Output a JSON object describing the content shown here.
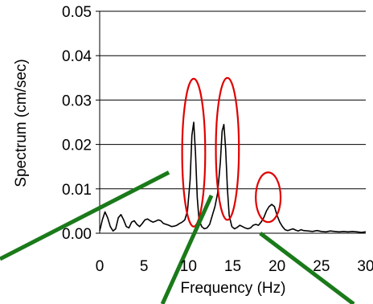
{
  "chart_data": {
    "type": "line",
    "xlabel": "Frequency (Hz)",
    "ylabel": "Spectrum (cm/sec)",
    "xlim": [
      0,
      30
    ],
    "ylim": [
      0,
      0.05
    ],
    "x_ticks": [
      "0",
      "5",
      "10",
      "15",
      "20",
      "25",
      "30"
    ],
    "y_ticks": [
      "0.00",
      "0.01",
      "0.02",
      "0.03",
      "0.04",
      "0.05"
    ],
    "grid": "horizontal",
    "series": [
      {
        "x": [
          0,
          0.3,
          0.6,
          0.9,
          1.2,
          1.5,
          1.8,
          2.1,
          2.4,
          2.7,
          3.0,
          3.3,
          3.6,
          3.9,
          4.2,
          4.5,
          4.8,
          5.1,
          5.4,
          5.7,
          6.0,
          6.3,
          6.6,
          6.9,
          7.2,
          7.5,
          7.8,
          8.1,
          8.4,
          8.7,
          9.0,
          9.3,
          9.6,
          9.9,
          10.2,
          10.4,
          10.6,
          10.8,
          11.0,
          11.2,
          11.5,
          11.8,
          12.1,
          12.4,
          12.7,
          13.0,
          13.3,
          13.6,
          13.8,
          14.0,
          14.2,
          14.4,
          14.6,
          14.9,
          15.2,
          15.5,
          15.8,
          16.1,
          16.4,
          16.7,
          17.0,
          17.3,
          17.6,
          17.9,
          18.2,
          18.5,
          18.8,
          19.1,
          19.4,
          19.7,
          20.0,
          20.3,
          20.6,
          20.9,
          21.2,
          21.5,
          21.8,
          22.1,
          22.4,
          22.7,
          23.0,
          23.5,
          24.0,
          24.5,
          25.0,
          25.5,
          26.0,
          26.5,
          27.0,
          27.5,
          28.0,
          28.5,
          29.0,
          29.5,
          30.0
        ],
        "y": [
          0.0005,
          0.003,
          0.0048,
          0.0035,
          0.0015,
          0.0005,
          0.001,
          0.0035,
          0.0042,
          0.003,
          0.0015,
          0.0012,
          0.0025,
          0.0028,
          0.002,
          0.0015,
          0.0022,
          0.003,
          0.0032,
          0.0028,
          0.0025,
          0.0027,
          0.003,
          0.0028,
          0.0022,
          0.002,
          0.0018,
          0.0015,
          0.0016,
          0.0018,
          0.0022,
          0.0025,
          0.003,
          0.005,
          0.012,
          0.022,
          0.025,
          0.018,
          0.008,
          0.003,
          0.0015,
          0.001,
          0.0012,
          0.002,
          0.004,
          0.006,
          0.009,
          0.016,
          0.023,
          0.0245,
          0.019,
          0.01,
          0.004,
          0.0015,
          0.001,
          0.0013,
          0.0018,
          0.0015,
          0.0012,
          0.001,
          0.0012,
          0.0018,
          0.002,
          0.0018,
          0.0025,
          0.0035,
          0.005,
          0.006,
          0.0065,
          0.006,
          0.004,
          0.0025,
          0.0015,
          0.0008,
          0.0006,
          0.0008,
          0.001,
          0.0007,
          0.0005,
          0.0008,
          0.0006,
          0.0005,
          0.0004,
          0.0006,
          0.0004,
          0.0003,
          0.0005,
          0.0004,
          0.0003,
          0.0004,
          0.0003,
          0.0004,
          0.0003,
          0.0002,
          0.0003
        ]
      }
    ],
    "highlight_ellipses": [
      {
        "x_range": [
          9.3,
          11.9
        ],
        "y_range": [
          0.0015,
          0.0348
        ]
      },
      {
        "x_range": [
          13.1,
          15.7
        ],
        "y_range": [
          0.003,
          0.035
        ]
      },
      {
        "x_range": [
          17.6,
          20.4
        ],
        "y_range": [
          0.0025,
          0.0137
        ]
      }
    ],
    "colors": {
      "line": "#000000",
      "highlight": "#e00000",
      "pointer": "#1a7a1a",
      "grid": "#000000"
    }
  }
}
